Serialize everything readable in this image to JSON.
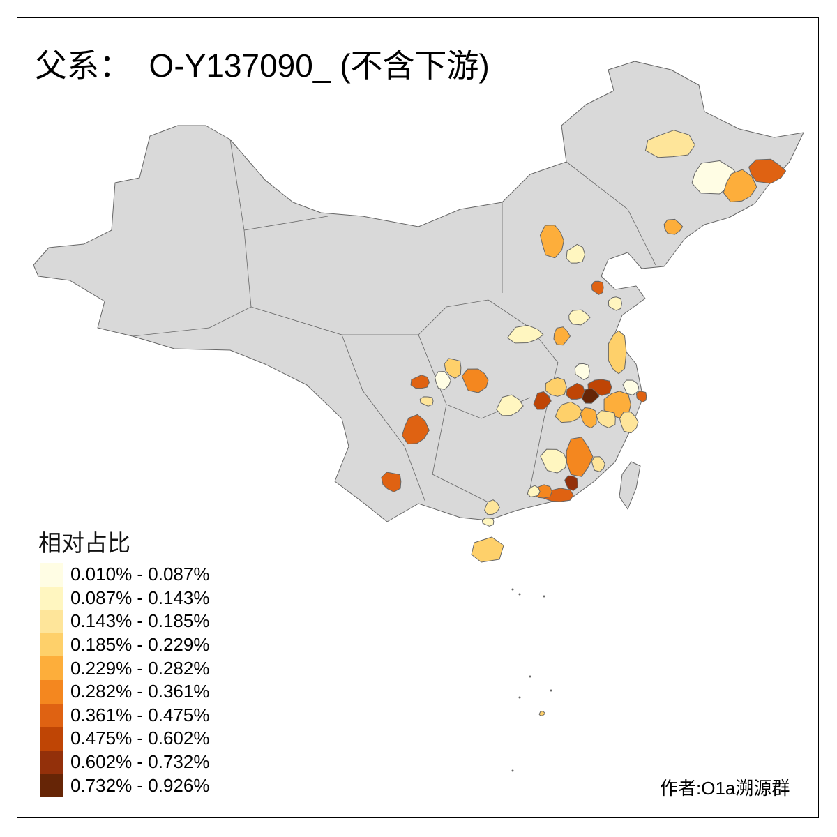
{
  "title": "父系：  O-Y137090_ (不含下游)",
  "legend": {
    "title": "相对占比",
    "items": [
      {
        "label": "0.010% - 0.087%",
        "color": "#fffde4"
      },
      {
        "label": "0.087% - 0.143%",
        "color": "#fff6c0"
      },
      {
        "label": "0.143% - 0.185%",
        "color": "#fee59a"
      },
      {
        "label": "0.185% - 0.229%",
        "color": "#fed06a"
      },
      {
        "label": "0.229% - 0.282%",
        "color": "#fdae3b"
      },
      {
        "label": "0.282% - 0.361%",
        "color": "#f4871f"
      },
      {
        "label": "0.361% - 0.475%",
        "color": "#df6212"
      },
      {
        "label": "0.475% - 0.602%",
        "color": "#bf4505"
      },
      {
        "label": "0.602% - 0.732%",
        "color": "#93300a"
      },
      {
        "label": "0.732% - 0.926%",
        "color": "#662506"
      }
    ]
  },
  "no_data_color": "#d9d9d9",
  "border_color": "#666666",
  "credit": "作者:O1a溯源群"
}
